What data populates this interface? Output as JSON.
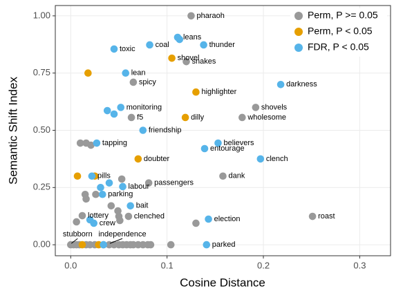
{
  "chart_data": {
    "type": "scatter",
    "x_label": "Cosine Distance",
    "y_label": "Semantic Shift Index",
    "xlim": [
      -0.016,
      0.332
    ],
    "ylim": [
      -0.048,
      1.045
    ],
    "xticks": [
      {
        "value": 0,
        "label": "0.0"
      },
      0.1,
      0.2,
      0.3
    ],
    "yticks": [
      {
        "value": 0,
        "label": "0.00"
      },
      0.25,
      {
        "value": 0.5,
        "label": "0.50"
      },
      0.75,
      {
        "value": 1,
        "label": "1.00"
      }
    ],
    "grid": true,
    "legend": "top-right",
    "series": [
      {
        "name": "Perm, P >= 0.05",
        "color": "#999999",
        "x": [
          0.125,
          0.12,
          0.065,
          0.063,
          0.192,
          0.178,
          0.158,
          0.081,
          0.251,
          0.06,
          0.012,
          0.13,
          0.01,
          0.016,
          0.021,
          0.053,
          0.015,
          0.016,
          0.026,
          0.042,
          0.049,
          0.05,
          0.051,
          0.006,
          0.0,
          0.003,
          0.006,
          0.009,
          0.016,
          0.02,
          0.025,
          0.034,
          0.04,
          0.045,
          0.05,
          0.054,
          0.058,
          0.062,
          0.065,
          0.07,
          0.075,
          0.08,
          0.083,
          0.104
        ],
        "values": [
          1.0,
          0.8,
          0.71,
          0.556,
          0.6,
          0.556,
          0.3,
          0.27,
          0.124,
          0.124,
          0.127,
          0.094,
          0.444,
          0.444,
          0.435,
          0.287,
          0.22,
          0.2,
          0.22,
          0.17,
          0.148,
          0.124,
          0.106,
          0.1,
          0,
          0,
          0,
          0,
          0,
          0,
          0,
          0,
          0,
          0,
          0,
          0,
          0,
          0,
          0,
          0,
          0,
          0,
          0,
          0
        ],
        "labels": [
          "pharaoh",
          "snakes",
          "spicy",
          "f5",
          "shovels",
          "wholesome",
          "dank",
          "passengers",
          "roast",
          "clenched",
          "lottery",
          null,
          null,
          null,
          null,
          null,
          null,
          null,
          null,
          null,
          null,
          null,
          null,
          null,
          "stubborn",
          null,
          null,
          null,
          null,
          null,
          null,
          null,
          "independence",
          null,
          null,
          null,
          null,
          null,
          null,
          null,
          null,
          null,
          null,
          null
        ]
      },
      {
        "name": "Perm, P < 0.05",
        "color": "#E69F00",
        "x": [
          0.105,
          0.018,
          0.13,
          0.119,
          0.07,
          0.007,
          0.025,
          0.012,
          0.029
        ],
        "values": [
          0.815,
          0.75,
          0.667,
          0.556,
          0.375,
          0.3,
          0.3,
          0,
          0
        ],
        "labels": [
          "shovel",
          null,
          "highlighter",
          "dilly",
          "doubter",
          null,
          null,
          null,
          null
        ]
      },
      {
        "name": "FDR, P < 0.05",
        "color": "#56B4E9",
        "x": [
          0.111,
          0.113,
          0.082,
          0.045,
          0.138,
          0.057,
          0.218,
          0.052,
          0.038,
          0.045,
          0.075,
          0.027,
          0.153,
          0.139,
          0.197,
          0.022,
          0.04,
          0.054,
          0.031,
          0.033,
          0.062,
          0.024,
          0.02,
          0.143,
          0.141,
          0.034
        ],
        "values": [
          0.906,
          0.897,
          0.873,
          0.855,
          0.873,
          0.75,
          0.7,
          0.6,
          0.586,
          0.571,
          0.5,
          0.444,
          0.444,
          0.42,
          0.375,
          0.3,
          0.27,
          0.254,
          0.25,
          0.22,
          0.17,
          0.094,
          0.109,
          0.112,
          0,
          0
        ],
        "labels": [
          "leans",
          null,
          "coal",
          "toxic",
          "thunder",
          "lean",
          "darkness",
          "monitoring",
          null,
          null,
          "friendship",
          "tapping",
          "believers",
          "entourage",
          "clench",
          "pills",
          null,
          "labour",
          null,
          "parking",
          "bait",
          "crew",
          null,
          "election",
          "parked",
          null
        ]
      }
    ]
  }
}
